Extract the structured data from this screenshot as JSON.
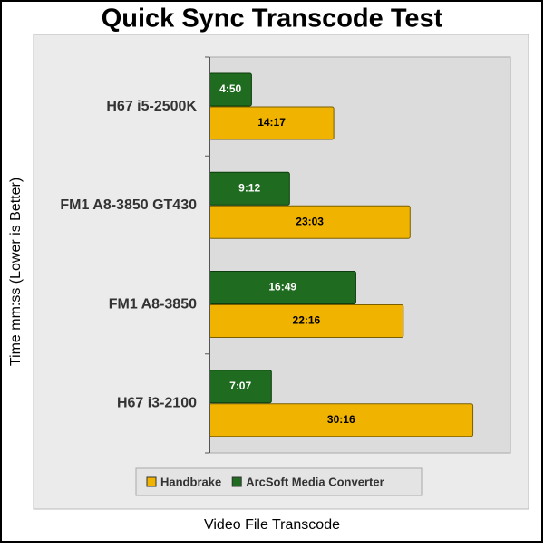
{
  "chart_data": {
    "type": "hbar",
    "title": "Quick Sync Transcode Test",
    "x_label": "Video File Transcode",
    "y_label": "Time mm:ss (Lower is Better)",
    "categories": [
      "H67 i5-2500K",
      "FM1 A8-3850 GT430",
      "FM1 A8-3850",
      "H67 i3-2100"
    ],
    "series": [
      {
        "name": "Handbrake",
        "color": "#f0b400",
        "values": [
          857,
          1383,
          1336,
          1816
        ],
        "value_labels": [
          "14:17",
          "23:03",
          "22:16",
          "30:16"
        ]
      },
      {
        "name": "ArcSoft Media Converter",
        "color": "#1f6b1f",
        "values": [
          290,
          552,
          1009,
          427
        ],
        "value_labels": [
          "4:50",
          "9:12",
          "16:49",
          "7:07"
        ]
      }
    ],
    "xlim": [
      0,
      2075
    ],
    "legend": "bottom"
  }
}
